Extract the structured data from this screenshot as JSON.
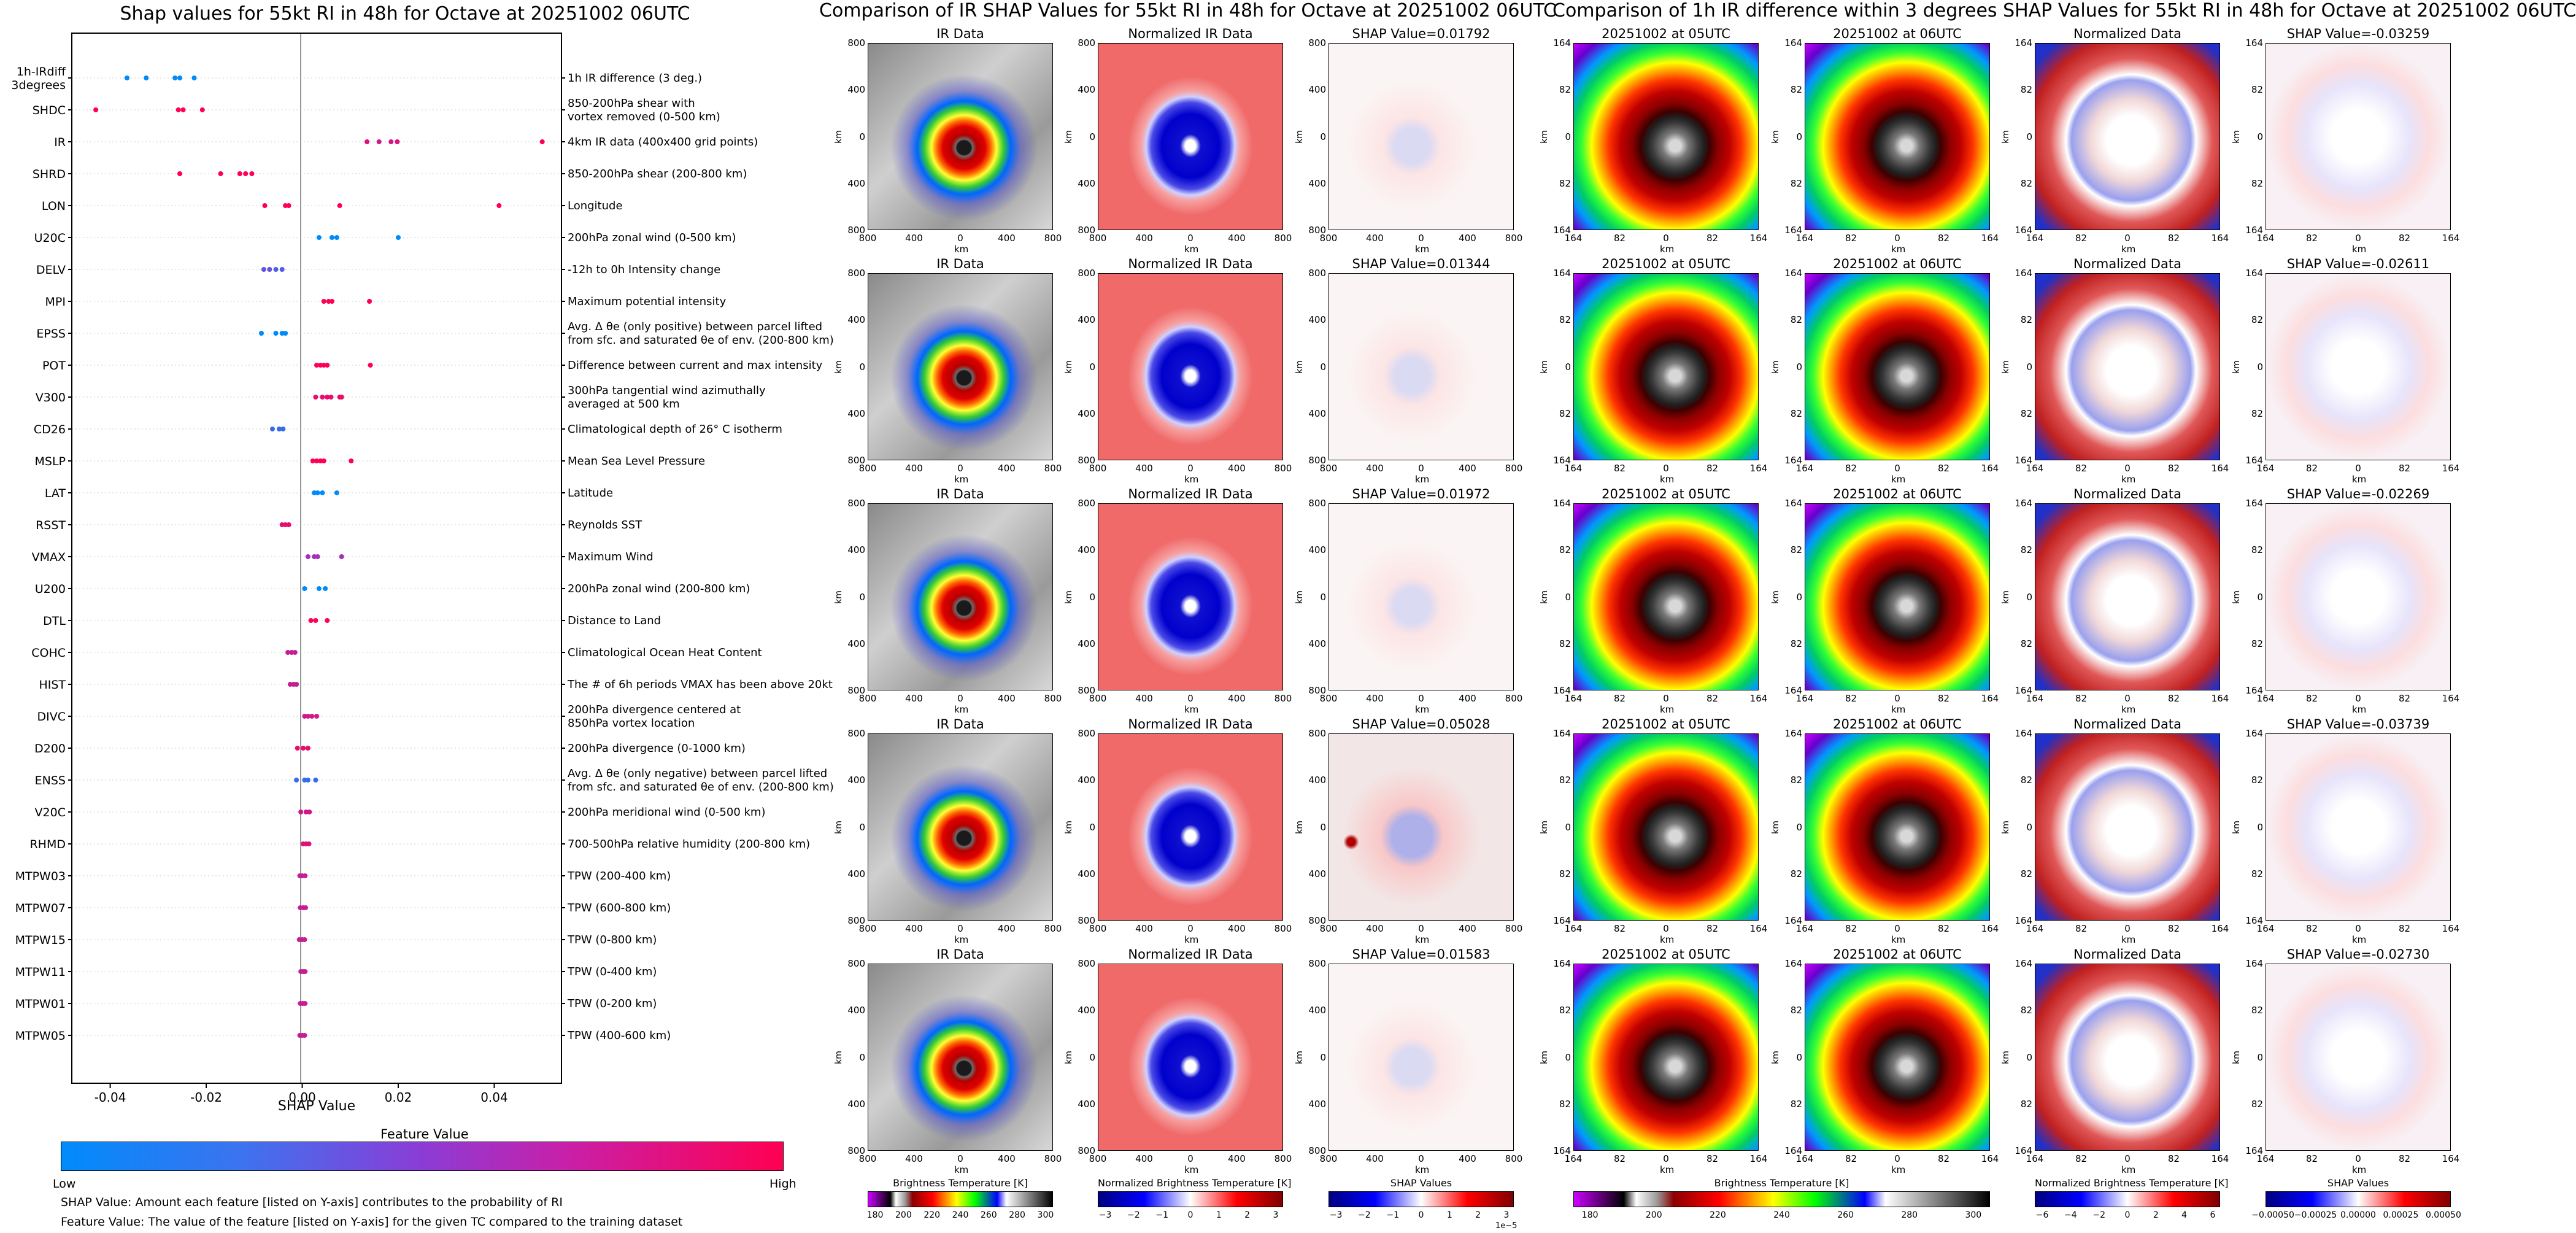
{
  "chart_data": [
    {
      "type": "scatter",
      "title": "Shap values for 55kt RI in 48h for Octave at 20251002 06UTC",
      "xlabel": "SHAP Value",
      "xlim": [
        -0.048,
        0.054
      ],
      "xticks": [
        "-0.04",
        "-0.02",
        "0.00",
        "0.02",
        "0.04"
      ],
      "xtick_values": [
        -0.04,
        -0.02,
        0.0,
        0.02,
        0.04
      ],
      "features": [
        {
          "label": "1h-IRdiff\n3degrees",
          "desc": "1h IR difference (3 deg.)",
          "points": [
            [
              -0.0365,
              0.0
            ],
            [
              -0.0325,
              0.0
            ],
            [
              -0.0265,
              0.0
            ],
            [
              -0.0255,
              0.0
            ],
            [
              -0.0225,
              0.0
            ]
          ]
        },
        {
          "label": "SHDC",
          "desc": "850-200hPa shear with\nvortex removed (0-500 km)",
          "points": [
            [
              -0.043,
              1.0
            ],
            [
              -0.0258,
              1.0
            ],
            [
              -0.0248,
              1.0
            ],
            [
              -0.0208,
              1.0
            ]
          ]
        },
        {
          "label": "IR",
          "desc": "4km IR data (400x400 grid points)",
          "points": [
            [
              0.0135,
              0.85
            ],
            [
              0.016,
              0.8
            ],
            [
              0.0185,
              0.8
            ],
            [
              0.0198,
              0.85
            ],
            [
              0.05,
              1.0
            ]
          ]
        },
        {
          "label": "SHRD",
          "desc": "850-200hPa shear (200-800 km)",
          "points": [
            [
              -0.0255,
              1.0
            ],
            [
              -0.017,
              1.0
            ],
            [
              -0.013,
              1.0
            ],
            [
              -0.0118,
              1.0
            ],
            [
              -0.0105,
              1.0
            ]
          ]
        },
        {
          "label": "LON",
          "desc": "Longitude",
          "points": [
            [
              -0.0078,
              1.0
            ],
            [
              -0.0035,
              1.0
            ],
            [
              -0.0028,
              1.0
            ],
            [
              0.0078,
              1.0
            ],
            [
              0.041,
              1.0
            ]
          ]
        },
        {
          "label": "U20C",
          "desc": "200hPa zonal wind (0-500 km)",
          "points": [
            [
              0.0035,
              0.0
            ],
            [
              0.0062,
              0.0
            ],
            [
              0.0072,
              0.0
            ],
            [
              0.02,
              0.0
            ]
          ]
        },
        {
          "label": "DELV",
          "desc": "-12h to 0h Intensity change",
          "points": [
            [
              -0.008,
              0.35
            ],
            [
              -0.0068,
              0.35
            ],
            [
              -0.0055,
              0.3
            ],
            [
              -0.0042,
              0.3
            ]
          ]
        },
        {
          "label": "MPI",
          "desc": "Maximum potential intensity",
          "points": [
            [
              0.0045,
              1.0
            ],
            [
              0.0055,
              1.0
            ],
            [
              0.0062,
              1.0
            ],
            [
              0.014,
              1.0
            ]
          ]
        },
        {
          "label": "EPSS",
          "desc": "Avg. Δ θe (only positive) between parcel lifted\nfrom sfc. and saturated θe of env. (200-800 km)",
          "points": [
            [
              -0.0085,
              0.0
            ],
            [
              -0.0055,
              0.0
            ],
            [
              -0.0042,
              0.0
            ],
            [
              -0.0035,
              0.0
            ]
          ]
        },
        {
          "label": "POT",
          "desc": "Difference between current and max intensity",
          "points": [
            [
              0.003,
              1.0
            ],
            [
              0.0038,
              1.0
            ],
            [
              0.0045,
              1.0
            ],
            [
              0.0052,
              1.0
            ],
            [
              0.0142,
              1.0
            ]
          ]
        },
        {
          "label": "V300",
          "desc": "300hPa tangential wind azimuthally\naveraged at 500 km",
          "points": [
            [
              0.0028,
              0.9
            ],
            [
              0.0042,
              0.9
            ],
            [
              0.0052,
              0.9
            ],
            [
              0.006,
              0.9
            ],
            [
              0.0078,
              0.9
            ],
            [
              0.0082,
              0.9
            ]
          ]
        },
        {
          "label": "CD26",
          "desc": "Climatological depth of 26° C isotherm",
          "points": [
            [
              -0.0062,
              0.2
            ],
            [
              -0.0048,
              0.2
            ],
            [
              -0.004,
              0.2
            ]
          ]
        },
        {
          "label": "MSLP",
          "desc": "Mean Sea Level Pressure",
          "points": [
            [
              0.0022,
              1.0
            ],
            [
              0.003,
              1.0
            ],
            [
              0.0038,
              1.0
            ],
            [
              0.0045,
              1.0
            ],
            [
              0.0102,
              1.0
            ]
          ]
        },
        {
          "label": "LAT",
          "desc": "Latitude",
          "points": [
            [
              0.0025,
              0.0
            ],
            [
              0.0032,
              0.0
            ],
            [
              0.0042,
              0.0
            ],
            [
              0.0072,
              0.0
            ]
          ]
        },
        {
          "label": "RSST",
          "desc": "Reynolds SST",
          "points": [
            [
              -0.0042,
              0.9
            ],
            [
              -0.0035,
              0.9
            ],
            [
              -0.0028,
              0.9
            ]
          ]
        },
        {
          "label": "VMAX",
          "desc": "Maximum Wind",
          "points": [
            [
              0.0012,
              0.6
            ],
            [
              0.0025,
              0.6
            ],
            [
              0.0032,
              0.6
            ],
            [
              0.0082,
              0.6
            ]
          ]
        },
        {
          "label": "U200",
          "desc": "200hPa zonal wind (200-800 km)",
          "points": [
            [
              0.0005,
              0.0
            ],
            [
              0.0035,
              0.0
            ],
            [
              0.0048,
              0.0
            ]
          ]
        },
        {
          "label": "DTL",
          "desc": "Distance to Land",
          "points": [
            [
              0.0018,
              1.0
            ],
            [
              0.0028,
              1.0
            ],
            [
              0.0052,
              1.0
            ]
          ]
        },
        {
          "label": "COHC",
          "desc": "Climatological Ocean Heat Content",
          "points": [
            [
              -0.003,
              0.75
            ],
            [
              -0.0022,
              0.75
            ],
            [
              -0.0015,
              0.75
            ]
          ]
        },
        {
          "label": "HIST",
          "desc": "The # of 6h periods VMAX has been above 20kt",
          "points": [
            [
              -0.0025,
              0.75
            ],
            [
              -0.0018,
              0.75
            ],
            [
              -0.0012,
              0.75
            ]
          ]
        },
        {
          "label": "DIVC",
          "desc": "200hPa divergence centered at\n850hPa vortex location",
          "points": [
            [
              0.0005,
              0.8
            ],
            [
              0.0012,
              0.8
            ],
            [
              0.002,
              0.8
            ],
            [
              0.003,
              0.8
            ]
          ]
        },
        {
          "label": "D200",
          "desc": "200hPa divergence (0-1000 km)",
          "points": [
            [
              -0.001,
              0.9
            ],
            [
              0.0002,
              0.9
            ],
            [
              0.0012,
              0.9
            ]
          ]
        },
        {
          "label": "ENSS",
          "desc": "Avg. Δ θe (only negative) between parcel lifted\nfrom sfc. and saturated θe of env. (200-800 km)",
          "points": [
            [
              -0.0012,
              0.2
            ],
            [
              0.0005,
              0.2
            ],
            [
              0.0012,
              0.2
            ],
            [
              0.0028,
              0.2
            ]
          ]
        },
        {
          "label": "V20C",
          "desc": "200hPa meridional wind (0-500 km)",
          "points": [
            [
              -0.0003,
              0.8
            ],
            [
              0.0008,
              0.8
            ],
            [
              0.0015,
              0.8
            ]
          ]
        },
        {
          "label": "RHMD",
          "desc": "700-500hPa relative humidity (200-800 km)",
          "points": [
            [
              0.0002,
              0.85
            ],
            [
              0.0008,
              0.85
            ],
            [
              0.0014,
              0.85
            ]
          ]
        },
        {
          "label": "MTPW03",
          "desc": "TPW (200-400 km)",
          "points": [
            [
              -0.0005,
              0.75
            ],
            [
              0.0,
              0.75
            ],
            [
              0.0006,
              0.75
            ]
          ]
        },
        {
          "label": "MTPW07",
          "desc": "TPW (600-800 km)",
          "points": [
            [
              -0.0004,
              0.75
            ],
            [
              0.0002,
              0.75
            ],
            [
              0.0007,
              0.75
            ]
          ]
        },
        {
          "label": "MTPW15",
          "desc": "TPW (0-800 km)",
          "points": [
            [
              -0.0006,
              0.75
            ],
            [
              0.0,
              0.75
            ],
            [
              0.0005,
              0.75
            ]
          ]
        },
        {
          "label": "MTPW11",
          "desc": "TPW (0-400 km)",
          "points": [
            [
              -0.0003,
              0.75
            ],
            [
              0.0002,
              0.75
            ],
            [
              0.0006,
              0.75
            ]
          ]
        },
        {
          "label": "MTPW01",
          "desc": "TPW (0-200 km)",
          "points": [
            [
              -0.0004,
              0.75
            ],
            [
              0.0001,
              0.75
            ],
            [
              0.0006,
              0.75
            ]
          ]
        },
        {
          "label": "MTPW05",
          "desc": "TPW (400-600 km)",
          "points": [
            [
              -0.0005,
              0.75
            ],
            [
              0.0,
              0.75
            ],
            [
              0.0005,
              0.75
            ]
          ]
        }
      ],
      "colorbar": {
        "title": "Feature Value",
        "low": "Low",
        "high": "High",
        "low_color": "#008bfb",
        "high_color": "#ff0052"
      }
    },
    {
      "type": "heatmap",
      "title": "Comparison of IR SHAP Values for 55kt RI in 48h for Octave at 20251002 06UTC",
      "column_titles": [
        "IR Data",
        "Normalized IR Data"
      ],
      "shap_values": [
        "SHAP Value=0.01792",
        "SHAP Value=0.01344",
        "SHAP Value=0.01972",
        "SHAP Value=0.05028",
        "SHAP Value=0.01583"
      ],
      "axis_label": "km",
      "ticks": [
        "800",
        "400",
        "0",
        "400",
        "800"
      ],
      "colorbars": [
        {
          "label": "Brightness Temperature [K]",
          "ticks": [
            "180",
            "200",
            "220",
            "240",
            "260",
            "280",
            "300"
          ]
        },
        {
          "label": "Normalized Brightness Temperature [K]",
          "ticks": [
            "−3",
            "−2",
            "−1",
            "0",
            "1",
            "2",
            "3"
          ]
        },
        {
          "label": "SHAP Values",
          "ticks": [
            "−3",
            "−2",
            "−1",
            "0",
            "1",
            "2",
            "3"
          ],
          "offset": "1e−5"
        }
      ]
    },
    {
      "type": "heatmap",
      "title": "Comparison of 1h IR difference within 3 degrees SHAP Values for 55kt RI in 48h for Octave at 20251002 06UTC",
      "column_titles": [
        "20251002 at 05UTC",
        "20251002 at 06UTC",
        "Normalized Data"
      ],
      "shap_values": [
        "SHAP Value=-0.03259",
        "SHAP Value=-0.02611",
        "SHAP Value=-0.02269",
        "SHAP Value=-0.03739",
        "SHAP Value=-0.02730"
      ],
      "axis_label": "km",
      "ticks": [
        "164",
        "82",
        "0",
        "82",
        "164"
      ],
      "colorbars": [
        {
          "label": "Brightness Temperature [K]",
          "ticks": [
            "180",
            "200",
            "220",
            "240",
            "260",
            "280",
            "300"
          ]
        },
        {
          "label": "Normalized Brightness Temperature [K]",
          "ticks": [
            "−6",
            "−4",
            "−2",
            "0",
            "2",
            "4",
            "6"
          ]
        },
        {
          "label": "SHAP Values",
          "ticks": [
            "−0.00050",
            "−0.00025",
            "0.00000",
            "0.00025",
            "0.00050"
          ]
        }
      ]
    }
  ],
  "notes": {
    "shap_value": "SHAP Value: Amount each feature [listed on Y-axis] contributes to the probability of RI",
    "feature_value": "Feature Value: The value of the feature [listed on Y-axis] for the given TC compared to the training dataset"
  }
}
